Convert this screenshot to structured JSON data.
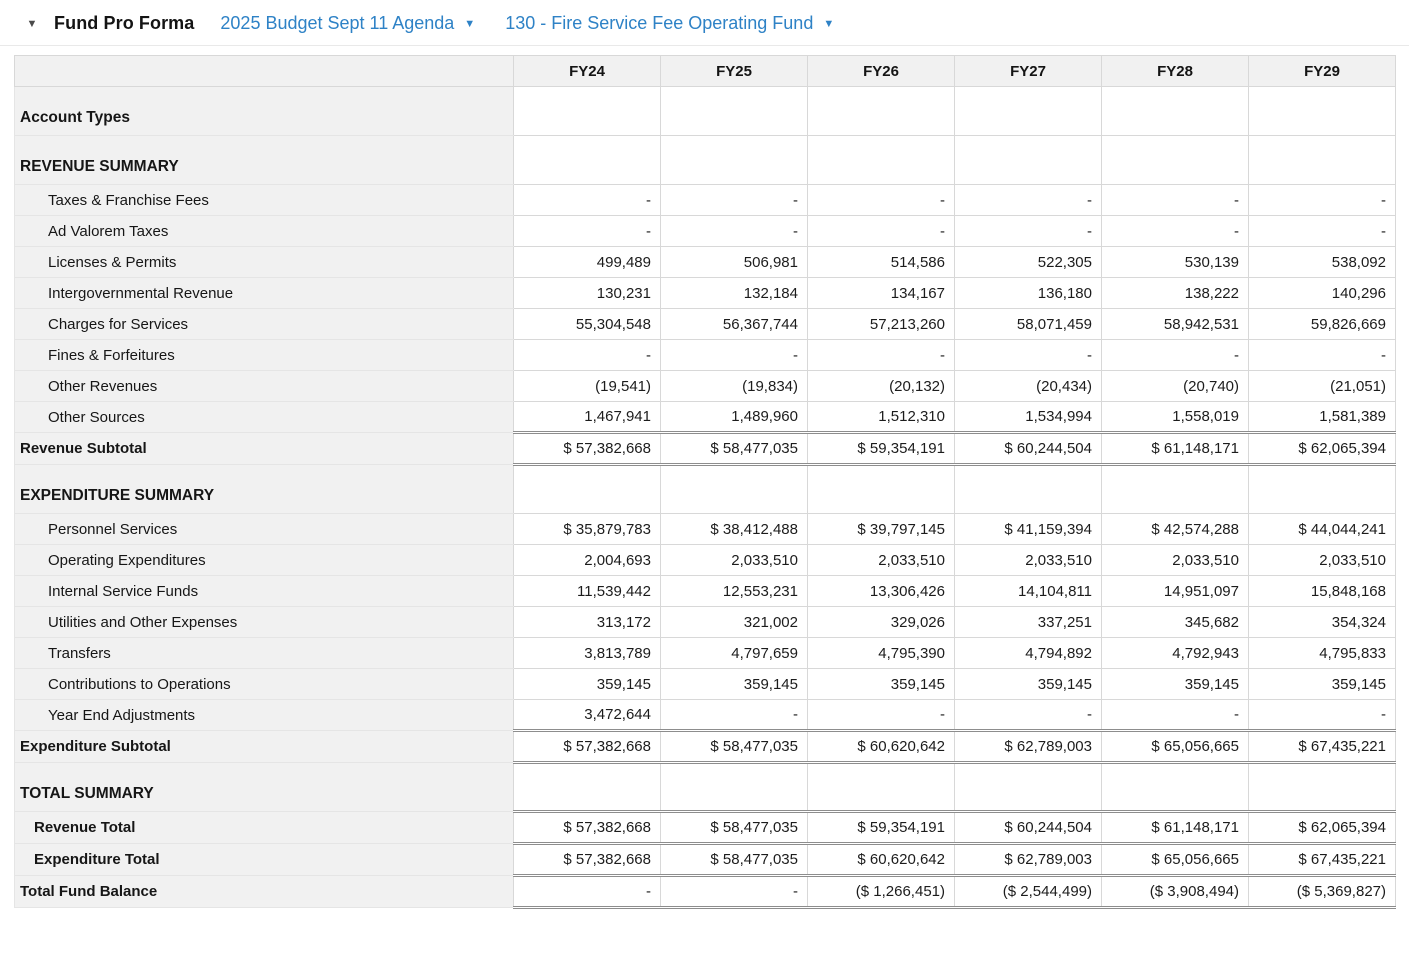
{
  "colors": {
    "accent_blue": "#2e82c6",
    "header_gray": "#f1f1f1",
    "grid_line": "#d8d8d8",
    "total_line": "#8d8d8d"
  },
  "icons": {
    "collapse_caret": "▼",
    "dropdown_caret": "▼"
  },
  "header": {
    "title": "Fund Pro Forma",
    "budget_dropdown": "2025 Budget Sept 11 Agenda",
    "fund_dropdown": "130 - Fire Service Fee Operating Fund"
  },
  "table": {
    "columns": [
      "FY24",
      "FY25",
      "FY26",
      "FY27",
      "FY28",
      "FY29"
    ],
    "rows": [
      {
        "type": "section",
        "label": "Account Types",
        "values": [
          "",
          "",
          "",
          "",
          "",
          ""
        ]
      },
      {
        "type": "section",
        "label": "REVENUE SUMMARY",
        "values": [
          "",
          "",
          "",
          "",
          "",
          ""
        ]
      },
      {
        "type": "item",
        "label": "Taxes & Franchise Fees",
        "values": [
          "-",
          "-",
          "-",
          "-",
          "-",
          "-"
        ]
      },
      {
        "type": "item",
        "label": "Ad Valorem Taxes",
        "values": [
          "-",
          "-",
          "-",
          "-",
          "-",
          "-"
        ]
      },
      {
        "type": "item",
        "label": "Licenses & Permits",
        "values": [
          "499,489",
          "506,981",
          "514,586",
          "522,305",
          "530,139",
          "538,092"
        ]
      },
      {
        "type": "item",
        "label": "Intergovernmental Revenue",
        "values": [
          "130,231",
          "132,184",
          "134,167",
          "136,180",
          "138,222",
          "140,296"
        ]
      },
      {
        "type": "item",
        "label": "Charges for Services",
        "values": [
          "55,304,548",
          "56,367,744",
          "57,213,260",
          "58,071,459",
          "58,942,531",
          "59,826,669"
        ]
      },
      {
        "type": "item",
        "label": "Fines & Forfeitures",
        "values": [
          "-",
          "-",
          "-",
          "-",
          "-",
          "-"
        ]
      },
      {
        "type": "item",
        "label": "Other Revenues",
        "values": [
          "(19,541)",
          "(19,834)",
          "(20,132)",
          "(20,434)",
          "(20,740)",
          "(21,051)"
        ]
      },
      {
        "type": "item",
        "label": "Other Sources",
        "values": [
          "1,467,941",
          "1,489,960",
          "1,512,310",
          "1,534,994",
          "1,558,019",
          "1,581,389"
        ]
      },
      {
        "type": "subtotal",
        "label": "Revenue Subtotal",
        "values": [
          "$ 57,382,668",
          "$ 58,477,035",
          "$ 59,354,191",
          "$ 60,244,504",
          "$ 61,148,171",
          "$ 62,065,394"
        ]
      },
      {
        "type": "section",
        "label": "EXPENDITURE SUMMARY",
        "values": [
          "",
          "",
          "",
          "",
          "",
          ""
        ]
      },
      {
        "type": "item",
        "label": "Personnel Services",
        "values": [
          "$ 35,879,783",
          "$ 38,412,488",
          "$ 39,797,145",
          "$ 41,159,394",
          "$ 42,574,288",
          "$ 44,044,241"
        ]
      },
      {
        "type": "item",
        "label": "Operating Expenditures",
        "values": [
          "2,004,693",
          "2,033,510",
          "2,033,510",
          "2,033,510",
          "2,033,510",
          "2,033,510"
        ]
      },
      {
        "type": "item",
        "label": "Internal Service Funds",
        "values": [
          "11,539,442",
          "12,553,231",
          "13,306,426",
          "14,104,811",
          "14,951,097",
          "15,848,168"
        ]
      },
      {
        "type": "item",
        "label": "Utilities and Other Expenses",
        "values": [
          "313,172",
          "321,002",
          "329,026",
          "337,251",
          "345,682",
          "354,324"
        ]
      },
      {
        "type": "item",
        "label": "Transfers",
        "values": [
          "3,813,789",
          "4,797,659",
          "4,795,390",
          "4,794,892",
          "4,792,943",
          "4,795,833"
        ]
      },
      {
        "type": "item",
        "label": "Contributions to Operations",
        "values": [
          "359,145",
          "359,145",
          "359,145",
          "359,145",
          "359,145",
          "359,145"
        ]
      },
      {
        "type": "item",
        "label": "Year End Adjustments",
        "values": [
          "3,472,644",
          "-",
          "-",
          "-",
          "-",
          "-"
        ]
      },
      {
        "type": "subtotal",
        "label": "Expenditure Subtotal",
        "values": [
          "$ 57,382,668",
          "$ 58,477,035",
          "$ 60,620,642",
          "$ 62,789,003",
          "$ 65,056,665",
          "$ 67,435,221"
        ]
      },
      {
        "type": "section",
        "label": "TOTAL SUMMARY",
        "values": [
          "",
          "",
          "",
          "",
          "",
          ""
        ]
      },
      {
        "type": "totalitem",
        "label": "Revenue Total",
        "values": [
          "$ 57,382,668",
          "$ 58,477,035",
          "$ 59,354,191",
          "$ 60,244,504",
          "$ 61,148,171",
          "$ 62,065,394"
        ]
      },
      {
        "type": "totalitem",
        "label": "Expenditure Total",
        "values": [
          "$ 57,382,668",
          "$ 58,477,035",
          "$ 60,620,642",
          "$ 62,789,003",
          "$ 65,056,665",
          "$ 67,435,221"
        ]
      },
      {
        "type": "grand",
        "label": "Total Fund Balance",
        "values": [
          "-",
          "-",
          "($ 1,266,451)",
          "($ 2,544,499)",
          "($ 3,908,494)",
          "($ 5,369,827)"
        ]
      }
    ]
  }
}
